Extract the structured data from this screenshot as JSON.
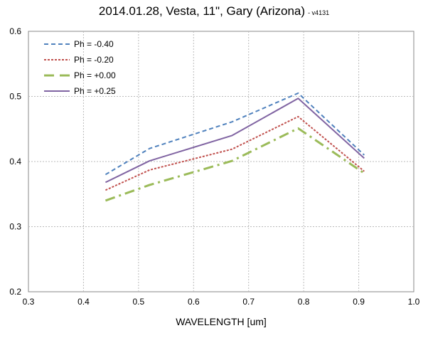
{
  "chart_data": {
    "type": "line",
    "title": "2014.01.28, Vesta, 11\", Gary (Arizona)",
    "subtitle": "- v4131",
    "xlabel": "WAVELENGTH [um]",
    "ylabel": "",
    "xlim": [
      0.3,
      1.0
    ],
    "ylim": [
      0.2,
      0.6
    ],
    "xticks": [
      "0.3",
      "0.4",
      "0.5",
      "0.6",
      "0.7",
      "0.8",
      "0.9",
      "1.0"
    ],
    "yticks": [
      "0.2",
      "0.3",
      "0.4",
      "0.5",
      "0.6"
    ],
    "grid": true,
    "legend_position": "top-left",
    "series": [
      {
        "name": "Ph = -0.40",
        "color": "#4f81bd",
        "dash": "dash",
        "x": [
          0.44,
          0.52,
          0.67,
          0.79,
          0.91
        ],
        "y": [
          0.38,
          0.42,
          0.461,
          0.505,
          0.41
        ]
      },
      {
        "name": "Ph = -0.20",
        "color": "#c0504d",
        "dash": "dot",
        "x": [
          0.44,
          0.52,
          0.67,
          0.79,
          0.91
        ],
        "y": [
          0.356,
          0.387,
          0.419,
          0.469,
          0.385
        ]
      },
      {
        "name": "Ph = +0.00",
        "color": "#9bbb59",
        "dash": "dashdot",
        "x": [
          0.44,
          0.52,
          0.67,
          0.79,
          0.91
        ],
        "y": [
          0.34,
          0.364,
          0.401,
          0.451,
          0.382
        ]
      },
      {
        "name": "Ph = +0.25",
        "color": "#8064a2",
        "dash": "solid",
        "x": [
          0.44,
          0.52,
          0.67,
          0.79,
          0.91
        ],
        "y": [
          0.368,
          0.401,
          0.44,
          0.497,
          0.405
        ]
      }
    ]
  }
}
